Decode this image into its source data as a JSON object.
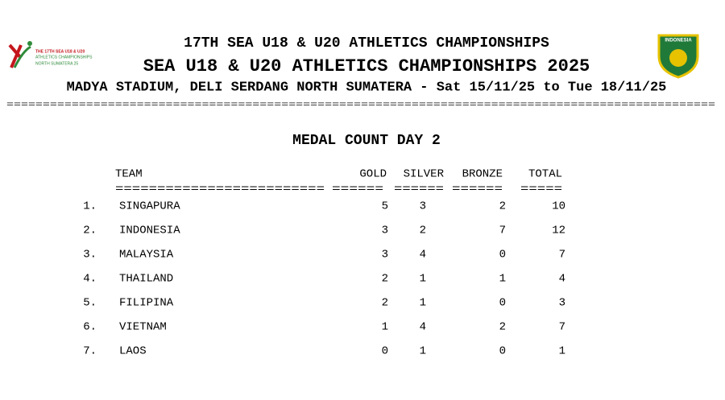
{
  "header": {
    "line1": "17TH SEA U18 & U20 ATHLETICS CHAMPIONSHIPS",
    "line2": "SEA U18 & U20 ATHLETICS CHAMPIONSHIPS 2025",
    "line3": "MADYA STADIUM, DELI SERDANG NORTH SUMATERA - Sat 15/11/25 to Tue 18/11/25",
    "rule": "=================================================================================================="
  },
  "logo_left": {
    "line1": "THE 17TH SEA U18 & U20",
    "line2": "ATHLETICS CHAMPIONSHIPS",
    "line3": "NORTH SUMATERA 25"
  },
  "logo_right": {
    "label": "INDONESIA"
  },
  "report": {
    "title": "MEDAL COUNT DAY 2"
  },
  "table": {
    "columns": [
      "TEAM",
      "GOLD",
      "SILVER",
      "BRONZE",
      "TOTAL"
    ],
    "separators": [
      "=========================",
      "======",
      "======",
      "======",
      "====="
    ],
    "rows": [
      [
        "1.",
        "SINGAPURA",
        5,
        3,
        2,
        10
      ],
      [
        "2.",
        "INDONESIA",
        3,
        2,
        7,
        12
      ],
      [
        "3.",
        "MALAYSIA",
        3,
        4,
        0,
        7
      ],
      [
        "4.",
        "THAILAND",
        2,
        1,
        1,
        4
      ],
      [
        "5.",
        "FILIPINA",
        2,
        1,
        0,
        3
      ],
      [
        "6.",
        "VIETNAM",
        1,
        4,
        2,
        7
      ],
      [
        "7.",
        "LAOS",
        0,
        1,
        0,
        1
      ]
    ]
  }
}
